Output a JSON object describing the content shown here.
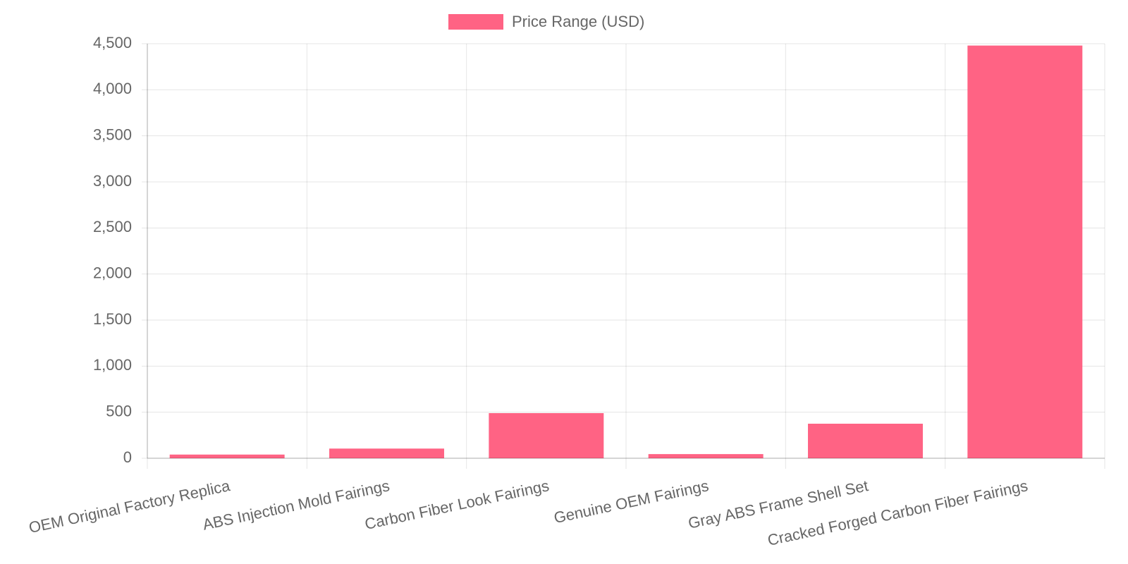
{
  "chart_data": {
    "type": "bar",
    "categories": [
      "OEM Original Factory Replica",
      "ABS Injection Mold Fairings",
      "Carbon Fiber Look Fairings",
      "Genuine OEM Fairings",
      "Gray ABS Frame Shell Set",
      "Cracked Forged Carbon Fiber Fairings"
    ],
    "series": [
      {
        "name": "Price Range (USD)",
        "color": "#ff6384",
        "values": [
          40,
          105,
          490,
          45,
          375,
          4480
        ]
      }
    ],
    "ylim": [
      0,
      4500
    ],
    "yticks": [
      0,
      500,
      {
        "value": 1000,
        "label": "1,000"
      },
      {
        "value": 1500,
        "label": "1,500"
      },
      {
        "value": 2000,
        "label": "2,000"
      },
      {
        "value": 2500,
        "label": "2,500"
      },
      {
        "value": 3000,
        "label": "3,000"
      },
      {
        "value": 3500,
        "label": "3,500"
      },
      {
        "value": 4000,
        "label": "4,000"
      },
      {
        "value": 4500,
        "label": "4,500"
      }
    ],
    "grid": true,
    "legend": "top"
  }
}
